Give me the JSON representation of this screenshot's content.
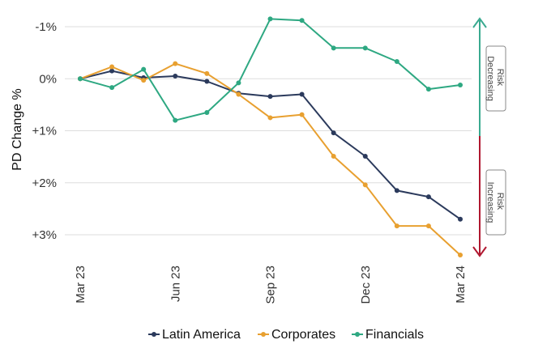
{
  "chart_data": {
    "type": "line",
    "title": "",
    "xlabel": "",
    "ylabel": "PD Change %",
    "x": [
      "Mar 23",
      "Apr 23",
      "May 23",
      "Jun 23",
      "Jul 23",
      "Aug 23",
      "Sep 23",
      "Oct 23",
      "Nov 23",
      "Dec 23",
      "Jan 24",
      "Feb 24",
      "Mar 24"
    ],
    "x_tick_labels": [
      {
        "index": 0,
        "label": "Mar 23"
      },
      {
        "index": 3,
        "label": "Jun 23"
      },
      {
        "index": 6,
        "label": "Sep 23"
      },
      {
        "index": 9,
        "label": "Dec 23"
      },
      {
        "index": 12,
        "label": "Mar 24"
      }
    ],
    "y_axis_inverted": true,
    "ylim": [
      -1.15,
      3.45
    ],
    "y_ticks": [
      {
        "value": -1,
        "label": "-1%"
      },
      {
        "value": 0,
        "label": "0%"
      },
      {
        "value": 1,
        "label": "+1%"
      },
      {
        "value": 2,
        "label": "+2%"
      },
      {
        "value": 3,
        "label": "+3%"
      }
    ],
    "grid": "horizontal",
    "legend_position": "bottom",
    "series": [
      {
        "name": "Latin America",
        "color": "#2b3a5c",
        "values": [
          0,
          -0.15,
          -0.02,
          -0.05,
          0.05,
          0.28,
          0.34,
          0.3,
          1.04,
          1.49,
          2.15,
          2.27,
          2.7
        ]
      },
      {
        "name": "Corporates",
        "color": "#e8a030",
        "values": [
          0,
          -0.23,
          0.03,
          -0.29,
          -0.1,
          0.3,
          0.75,
          0.69,
          1.49,
          2.04,
          2.83,
          2.83,
          3.39
        ]
      },
      {
        "name": "Financials",
        "color": "#2ea882",
        "values": [
          0,
          0.17,
          -0.18,
          0.8,
          0.65,
          0.08,
          -1.15,
          -1.12,
          -0.59,
          -0.59,
          -0.33,
          0.2,
          0.12
        ]
      }
    ],
    "annotations": {
      "risk_decreasing": {
        "label_line1": "Risk",
        "label_line2": "Decreasing",
        "color": "#3aaa90"
      },
      "risk_increasing": {
        "label_line1": "Risk",
        "label_line2": "Increasing",
        "color": "#b01830"
      }
    }
  }
}
